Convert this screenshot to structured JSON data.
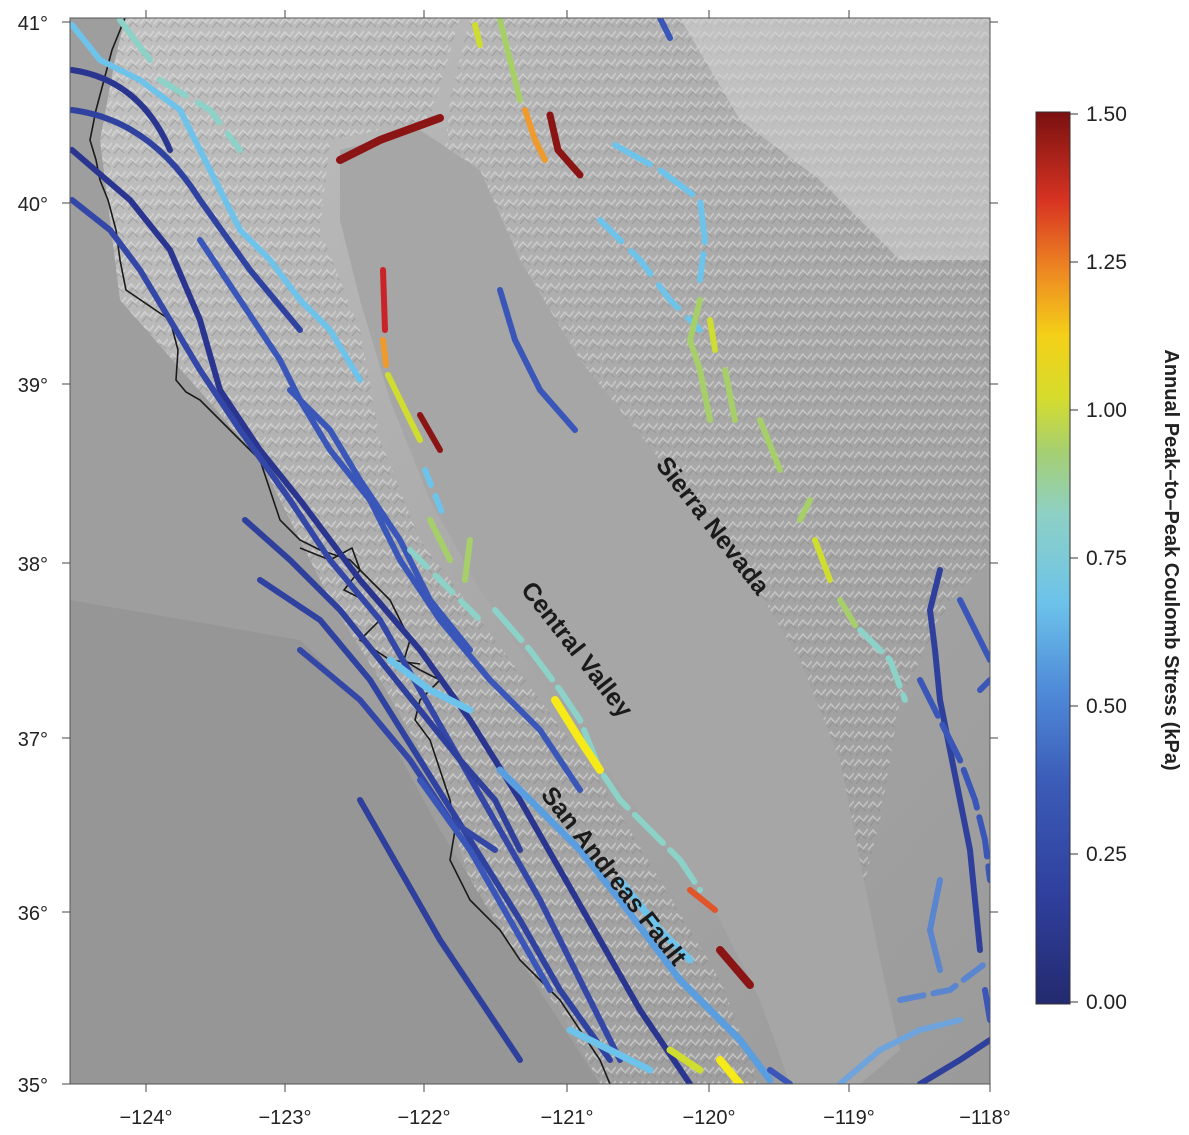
{
  "map": {
    "x_ticks": [
      "−124°",
      "−123°",
      "−122°",
      "−121°",
      "−120°",
      "−119°",
      "−118°"
    ],
    "y_ticks": [
      "41°",
      "40°",
      "39°",
      "38°",
      "37°",
      "36°",
      "35°"
    ],
    "labels": {
      "central_valley": "Central Valley",
      "sierra_nevada": "Sierra Nevada",
      "san_andreas": "San Andreas Fault"
    }
  },
  "colorbar": {
    "title": "Annual Peak–to–Peak Coulomb Stress (kPa)",
    "ticks": [
      "1.50",
      "1.25",
      "1.00",
      "0.75",
      "0.50",
      "0.25",
      "0.00"
    ],
    "range": [
      0,
      1.5
    ],
    "colors": [
      "#2b2f86",
      "#3457b8",
      "#4f8fd8",
      "#6cc3e8",
      "#86ccc0",
      "#a8d27a",
      "#f0e020",
      "#f0a020",
      "#e04020",
      "#b01a1a",
      "#7a1010"
    ]
  },
  "colors": {
    "dark_blue": "#2a3590",
    "blue": "#3a56b8",
    "mid_blue": "#5a86d0",
    "light_blue": "#6ec3ea",
    "aqua": "#8cd2c8",
    "green": "#a6cf6a",
    "yellow_green": "#cfdc30",
    "yellow": "#f6ea18",
    "orange": "#ee9a2c",
    "red_orange": "#e0562a",
    "red": "#c8242a",
    "dark_red": "#8b1414",
    "coast": "#1a1a1a"
  }
}
